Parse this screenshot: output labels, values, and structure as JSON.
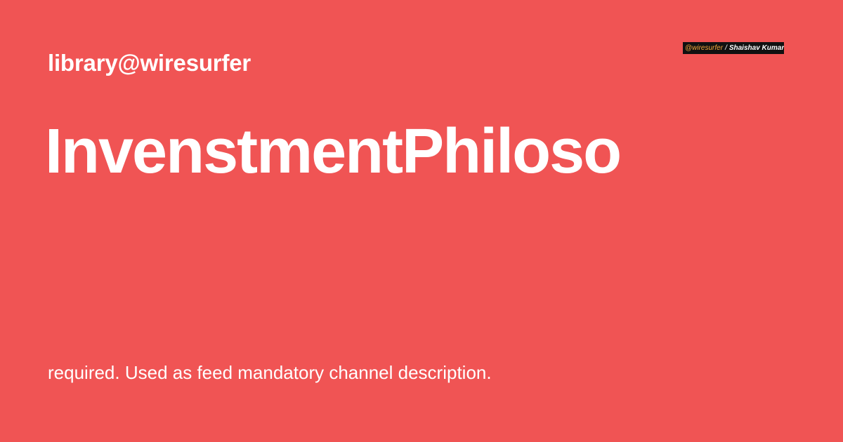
{
  "site": {
    "label": "library@wiresurfer"
  },
  "brand": {
    "handle": "@wiresurfer",
    "separator": "/",
    "author": "Shaishav Kumar",
    "handle_color": "#f2a83b",
    "background_color": "#111111"
  },
  "page": {
    "title": "InvenstmentPhiloso",
    "description": "required. Used as feed mandatory channel description."
  },
  "colors": {
    "background": "#f05454",
    "text": "#ffffff"
  }
}
